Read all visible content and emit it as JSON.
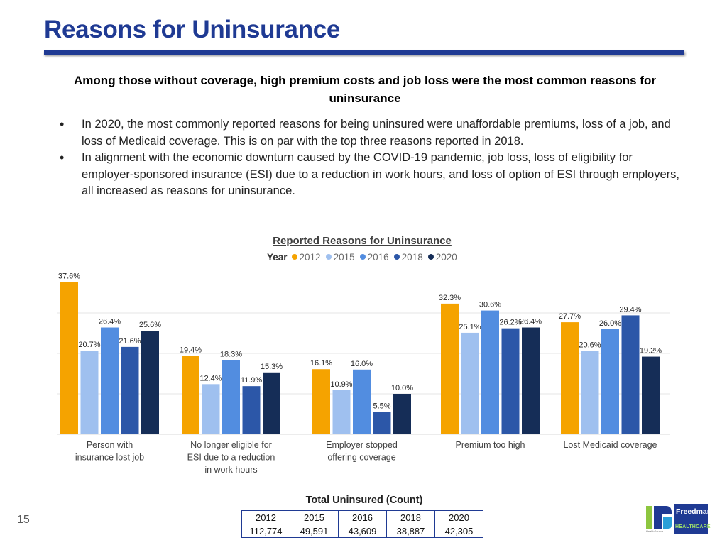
{
  "header": {
    "title": "Reasons for Uninsurance",
    "subtitle": "Among those without coverage, high premium costs and job loss were the most common reasons for uninsurance"
  },
  "bullets": [
    "In 2020, the most commonly reported reasons for being uninsured were unaffordable premiums, loss of a job, and loss of Medicaid coverage. This is on par with the top three reasons reported in 2018.",
    "In alignment with the economic downturn caused by the COVID-19 pandemic, job loss, loss of eligibility for employer-sponsored insurance (ESI) due to a reduction in work hours, and loss of option of ESI through employers, all increased as reasons for uninsurance."
  ],
  "chart_data": {
    "type": "bar",
    "title": "Reported Reasons for Uninsurance",
    "legend_title": "Year",
    "legend_position": "top",
    "categories": [
      [
        "Person with",
        "insurance lost job"
      ],
      [
        "No longer eligible for",
        "ESI due to a reduction",
        "in work hours"
      ],
      [
        "Employer stopped",
        "offering coverage"
      ],
      [
        "Premium too high"
      ],
      [
        "Lost Medicaid coverage"
      ]
    ],
    "series": [
      {
        "name": "2012",
        "color": "#f5a300",
        "values": [
          37.6,
          19.4,
          16.1,
          32.3,
          27.7
        ]
      },
      {
        "name": "2015",
        "color": "#9fc0ef",
        "values": [
          20.7,
          12.4,
          10.9,
          25.1,
          20.6
        ]
      },
      {
        "name": "2016",
        "color": "#528de0",
        "values": [
          26.4,
          18.3,
          16.0,
          30.6,
          26.0
        ]
      },
      {
        "name": "2018",
        "color": "#2c57a8",
        "values": [
          21.6,
          11.9,
          5.5,
          26.2,
          29.4
        ]
      },
      {
        "name": "2020",
        "color": "#152d57",
        "values": [
          25.6,
          15.3,
          10.0,
          26.4,
          19.2
        ]
      }
    ],
    "data_labels": true,
    "value_format": "percent_1dp",
    "ylim": [
      0,
      40
    ],
    "grid": true
  },
  "total_uninsured": {
    "title": "Total Uninsured (Count)",
    "years": [
      "2012",
      "2015",
      "2016",
      "2018",
      "2020"
    ],
    "counts": [
      "112,774",
      "49,591",
      "43,609",
      "38,887",
      "42,305"
    ]
  },
  "footer": {
    "page_number": "15",
    "logo_name": "Freedman",
    "logo_sub": "HEALTHCARE",
    "logo_small": "HealthSource"
  }
}
